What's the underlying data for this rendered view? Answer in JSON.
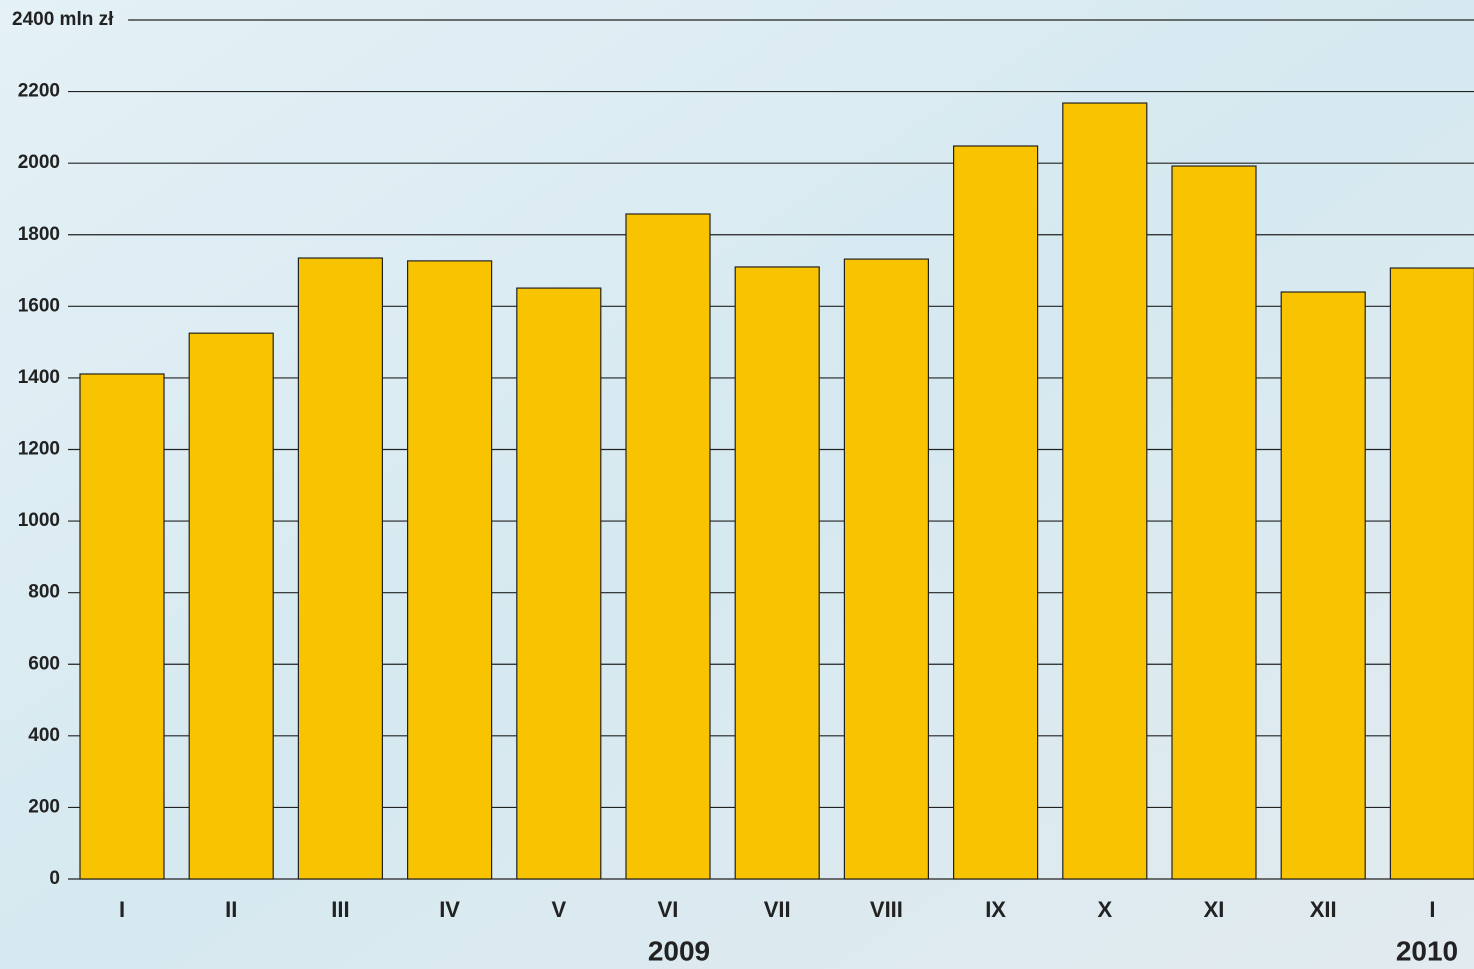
{
  "chart_data": {
    "type": "bar",
    "categories": [
      "I",
      "II",
      "III",
      "IV",
      "V",
      "VI",
      "VII",
      "VIII",
      "IX",
      "X",
      "XI",
      "XII",
      "I"
    ],
    "values": [
      1411,
      1525,
      1735,
      1727,
      1651,
      1858,
      1710,
      1732,
      2048,
      2168,
      1992,
      1640,
      1707
    ],
    "color": "#f8c300",
    "ylim": [
      0,
      2400
    ],
    "yticks": [
      0,
      200,
      400,
      600,
      800,
      1000,
      1200,
      1400,
      1600,
      1800,
      2000,
      2200,
      {
        "value": 2400,
        "label": "2400 mln zł"
      }
    ],
    "grid": true,
    "annotations": [
      "2009",
      "2010"
    ]
  }
}
